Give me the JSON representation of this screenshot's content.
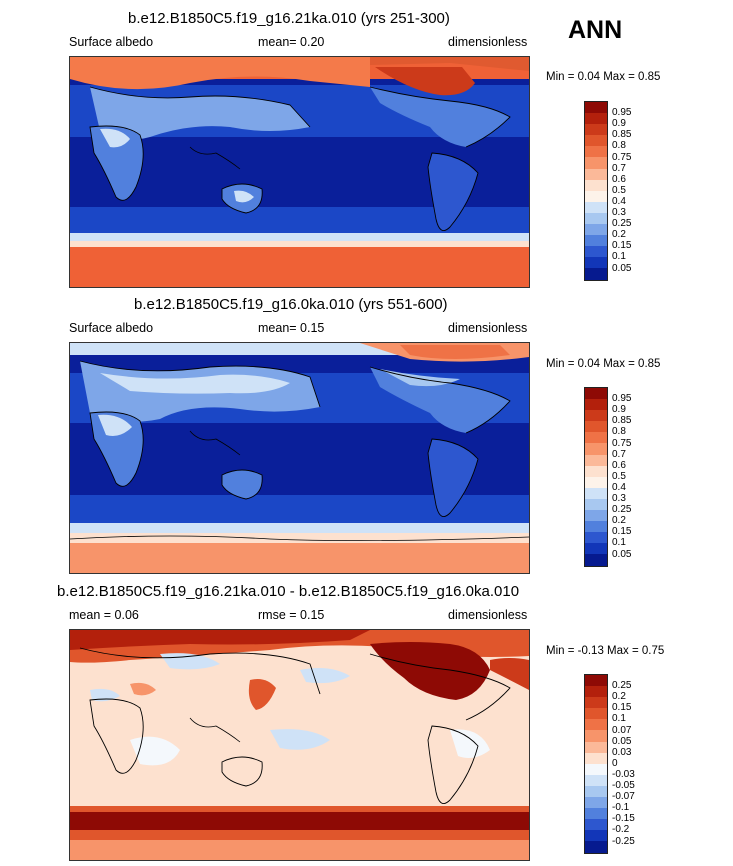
{
  "season": "ANN",
  "panels": [
    {
      "title": "b.e12.B1850C5.f19_g16.21ka.010 (yrs 251-300)",
      "left_label": "Surface albedo",
      "center_label": "mean=  0.20",
      "right_label": "dimensionless",
      "minmax": "Min =   0.04 Max =   0.85",
      "colorbar": {
        "labels": [
          "0.95",
          "0.9",
          "0.85",
          "0.8",
          "0.75",
          "0.7",
          "0.6",
          "0.5",
          "0.4",
          "0.3",
          "0.25",
          "0.2",
          "0.15",
          "0.1",
          "0.05"
        ],
        "colors": [
          "#8e0a05",
          "#b3200c",
          "#cc3a1a",
          "#e0562c",
          "#ef7246",
          "#f7946a",
          "#fbb999",
          "#fde1cf",
          "#fdf3ea",
          "#cfe2f7",
          "#a8c8f0",
          "#7ea6e8",
          "#5180dd",
          "#2d57cf",
          "#1236b8",
          "#061a8f"
        ]
      },
      "map_type": "albedo_glacial"
    },
    {
      "title": "b.e12.B1850C5.f19_g16.0ka.010 (yrs 551-600)",
      "left_label": "Surface albedo",
      "center_label": "mean=  0.15",
      "right_label": "dimensionless",
      "minmax": "Min =   0.04 Max =   0.85",
      "colorbar": {
        "labels": [
          "0.95",
          "0.9",
          "0.85",
          "0.8",
          "0.75",
          "0.7",
          "0.6",
          "0.5",
          "0.4",
          "0.3",
          "0.25",
          "0.2",
          "0.15",
          "0.1",
          "0.05"
        ],
        "colors": [
          "#8e0a05",
          "#b3200c",
          "#cc3a1a",
          "#e0562c",
          "#ef7246",
          "#f7946a",
          "#fbb999",
          "#fde1cf",
          "#fdf3ea",
          "#cfe2f7",
          "#a8c8f0",
          "#7ea6e8",
          "#5180dd",
          "#2d57cf",
          "#1236b8",
          "#061a8f"
        ]
      },
      "map_type": "albedo_modern"
    },
    {
      "title": "b.e12.B1850C5.f19_g16.21ka.010 - b.e12.B1850C5.f19_g16.0ka.010",
      "left_label": "mean =   0.06",
      "center_label": "rmse =   0.15",
      "right_label": "dimensionless",
      "minmax": "Min =  -0.13 Max =   0.75",
      "colorbar": {
        "labels": [
          "0.25",
          "0.2",
          "0.15",
          "0.1",
          "0.07",
          "0.05",
          "0.03",
          "0",
          "-0.03",
          "-0.05",
          "-0.07",
          "-0.1",
          "-0.15",
          "-0.2",
          "-0.25"
        ],
        "colors": [
          "#8e0a05",
          "#b3200c",
          "#cc3a1a",
          "#e0562c",
          "#ef7246",
          "#f7946a",
          "#fbb999",
          "#fde1cf",
          "#f4f8fc",
          "#cfe2f7",
          "#a8c8f0",
          "#7ea6e8",
          "#5180dd",
          "#2d57cf",
          "#1236b8",
          "#061a8f"
        ]
      },
      "map_type": "difference"
    }
  ]
}
